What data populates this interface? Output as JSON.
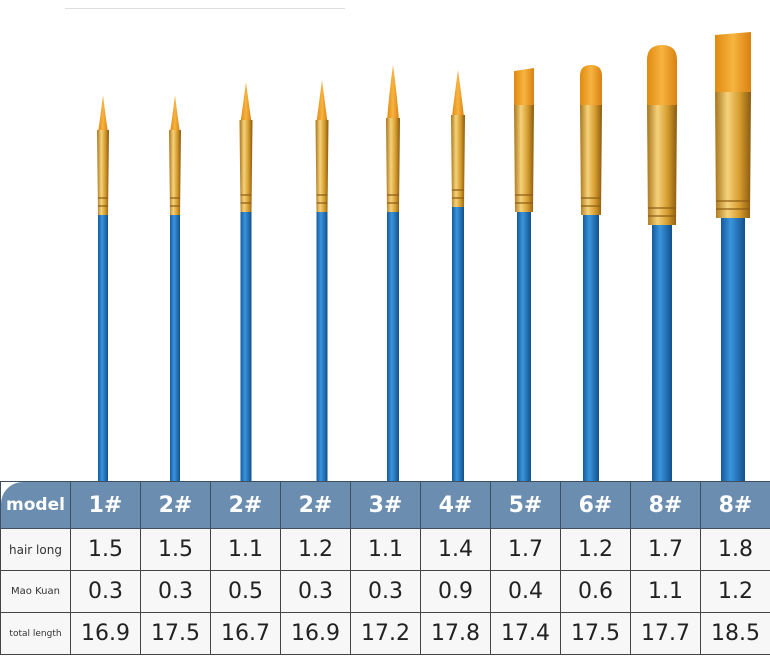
{
  "colors": {
    "header_bg": "#6b8db0",
    "handle": "#1f74c0",
    "ferrule": "#d9a63a",
    "hair": "#f0a020"
  },
  "table": {
    "header_label": "model",
    "models": [
      "1#",
      "2#",
      "2#",
      "2#",
      "3#",
      "4#",
      "5#",
      "6#",
      "8#",
      "8#"
    ],
    "rows": [
      {
        "label": "hair long",
        "values": [
          "1.5",
          "1.5",
          "1.1",
          "1.2",
          "1.1",
          "1.4",
          "1.7",
          "1.2",
          "1.7",
          "1.8"
        ]
      },
      {
        "label": "Mao Kuan",
        "values": [
          "0.3",
          "0.3",
          "0.5",
          "0.3",
          "0.3",
          "0.9",
          "0.4",
          "0.6",
          "1.1",
          "1.2"
        ]
      },
      {
        "label": "total length",
        "values": [
          "16.9",
          "17.5",
          "16.7",
          "16.9",
          "17.2",
          "17.8",
          "17.4",
          "17.5",
          "17.7",
          "18.5"
        ]
      }
    ]
  },
  "brushes": [
    {
      "model": "1#",
      "type": "round"
    },
    {
      "model": "2#",
      "type": "round"
    },
    {
      "model": "2#",
      "type": "round"
    },
    {
      "model": "2#",
      "type": "round"
    },
    {
      "model": "3#",
      "type": "round"
    },
    {
      "model": "4#",
      "type": "round"
    },
    {
      "model": "5#",
      "type": "flat"
    },
    {
      "model": "6#",
      "type": "filbert"
    },
    {
      "model": "8#",
      "type": "filbert"
    },
    {
      "model": "8#",
      "type": "flat"
    }
  ]
}
